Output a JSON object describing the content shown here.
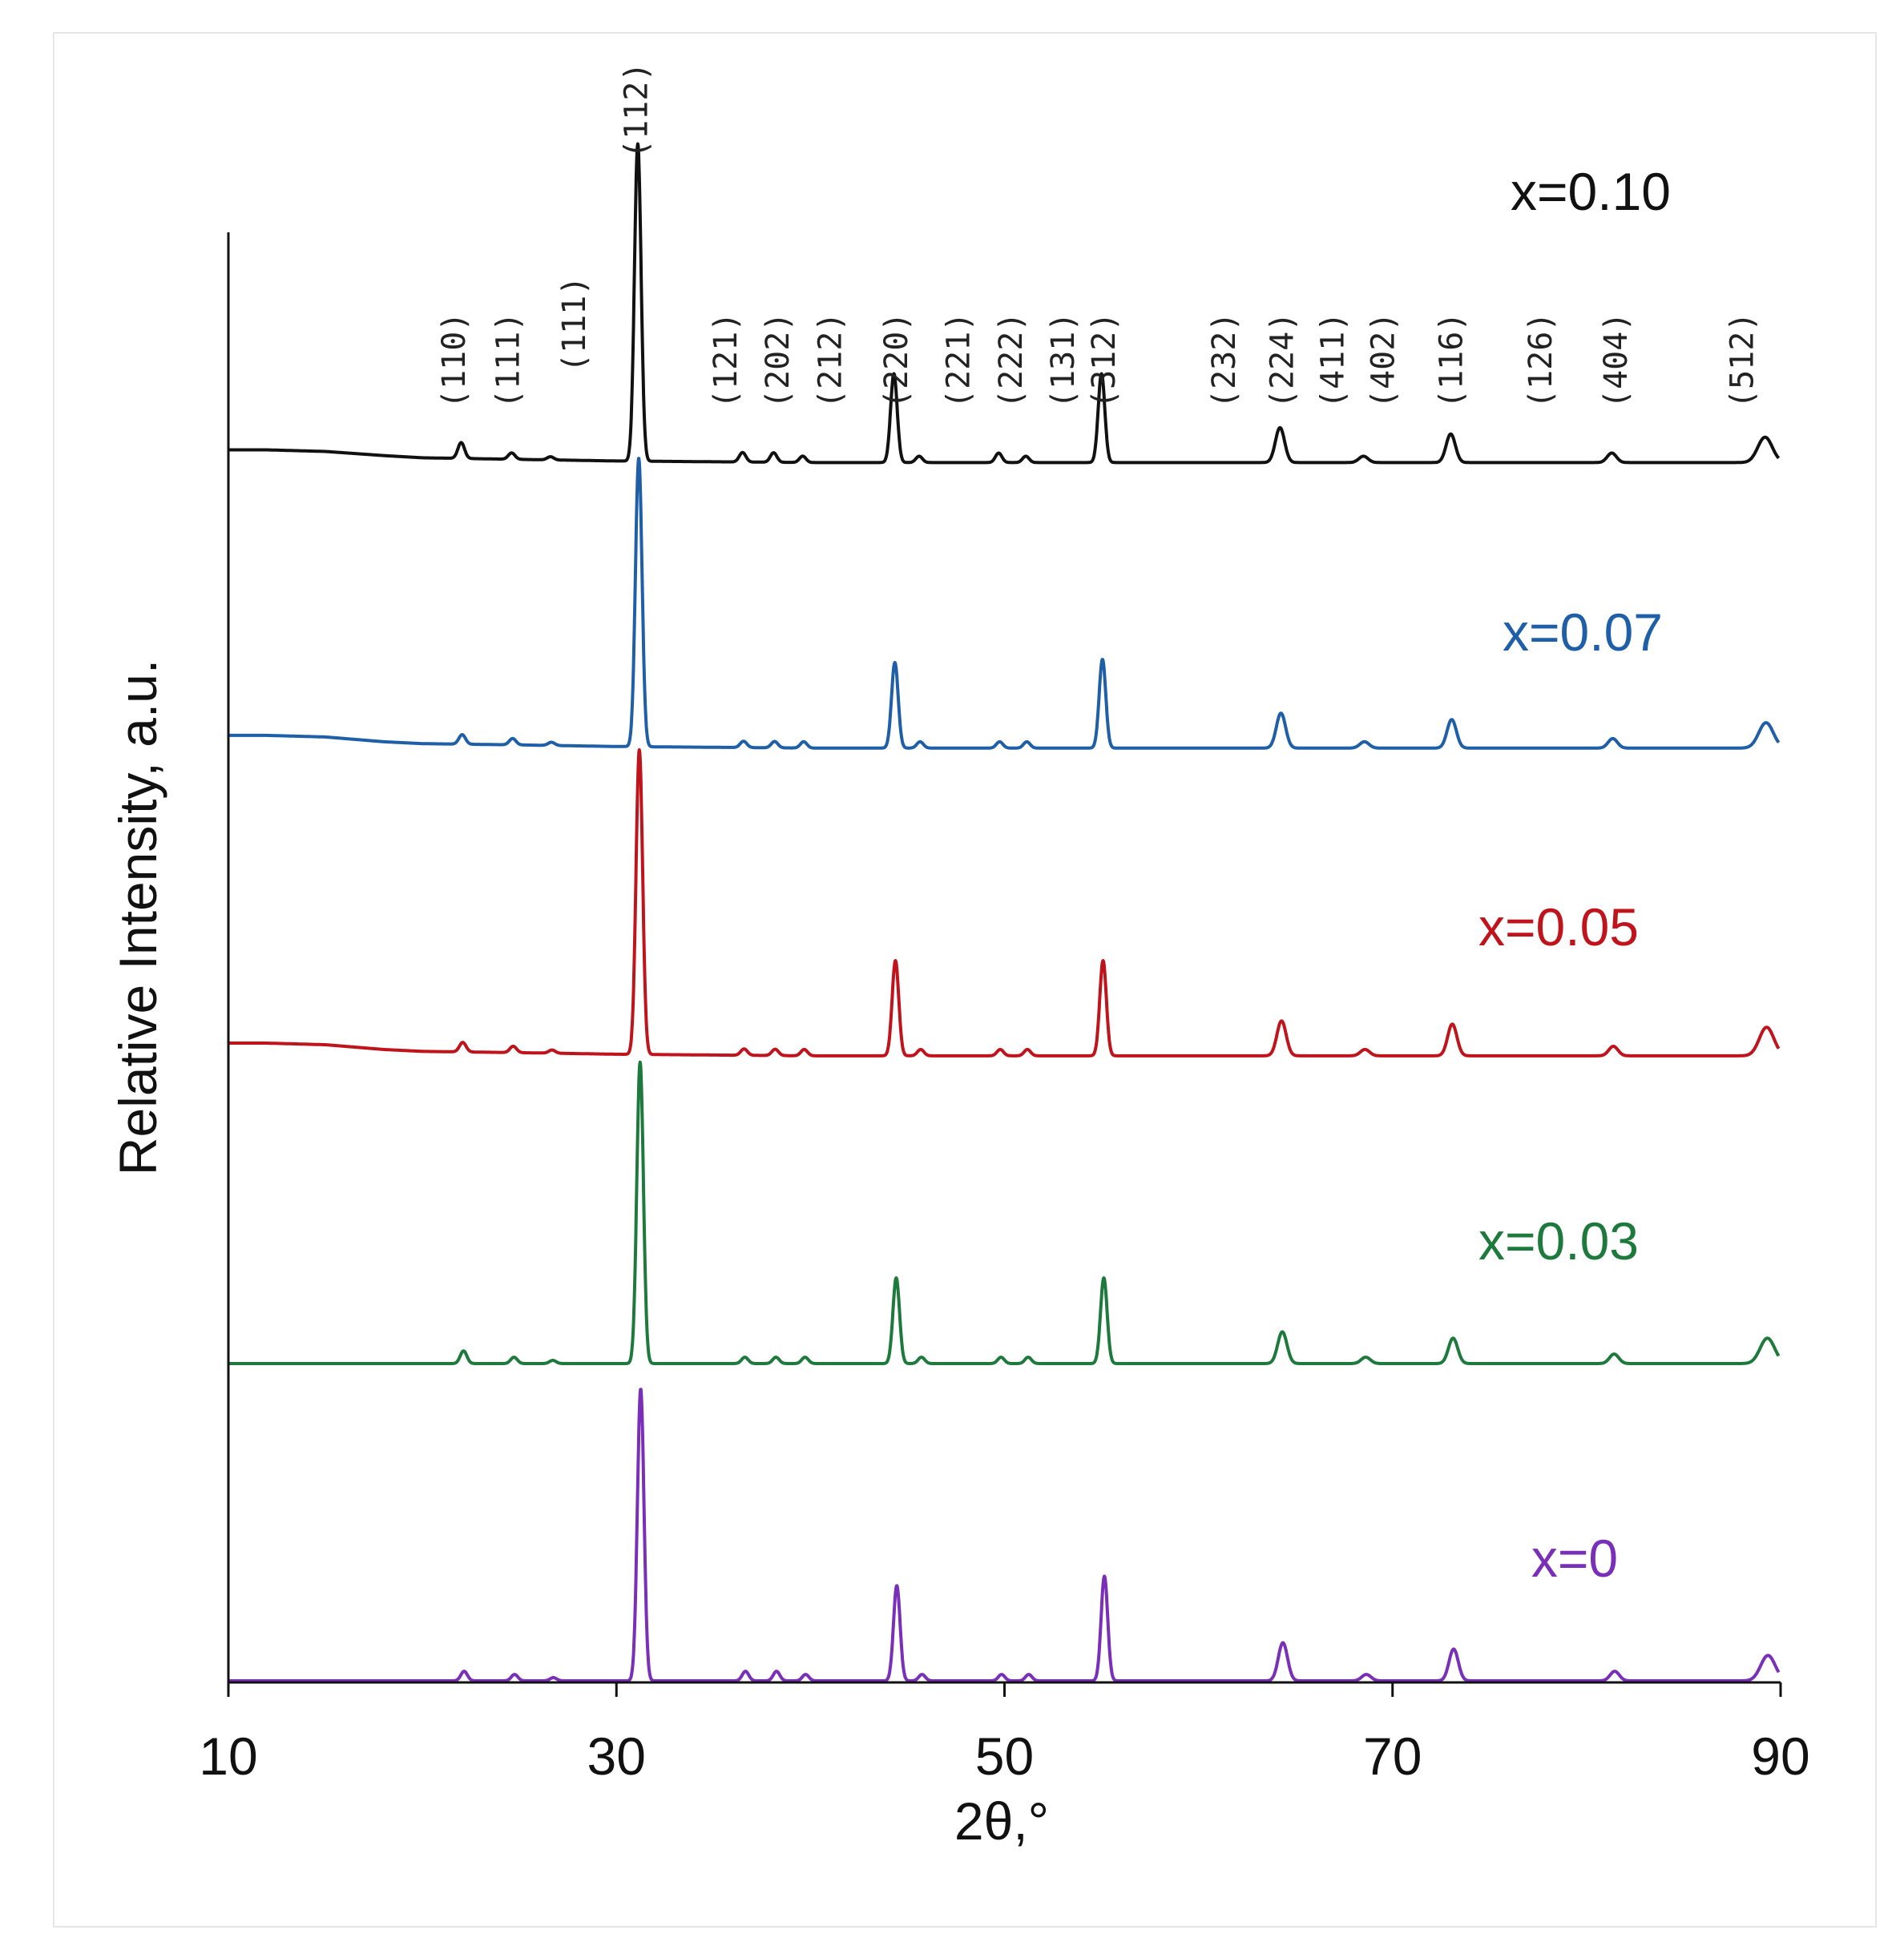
{
  "chart_data": {
    "type": "line",
    "title": "",
    "xlabel": "2θ,°",
    "ylabel": "Relative Intensity,  a.u.",
    "xlim": [
      10,
      90
    ],
    "xticks": [
      "10",
      "30",
      "50",
      "70",
      "90"
    ],
    "y_ticks_shown": false,
    "grid": false,
    "legend": "series labels printed at right above each trace",
    "peaks_2theta": [
      22.0,
      24.6,
      26.6,
      31.1,
      36.5,
      38.1,
      39.6,
      44.3,
      45.6,
      49.7,
      51.1,
      55.0,
      64.2,
      68.5,
      73.0,
      81.3,
      89.2
    ],
    "hkl_labels": [
      {
        "label": "(110)",
        "x": 21.6
      },
      {
        "label": "(111)",
        "x": 24.4
      },
      {
        "label": "(111)",
        "x": 27.8
      },
      {
        "label": "(112)",
        "x": 31.0
      },
      {
        "label": "(121)",
        "x": 35.6
      },
      {
        "label": "(202)",
        "x": 38.3
      },
      {
        "label": "(212)",
        "x": 41.0
      },
      {
        "label": "(220)",
        "x": 44.4
      },
      {
        "label": "(221)",
        "x": 47.6
      },
      {
        "label": "(222)",
        "x": 50.3
      },
      {
        "label": "(131)",
        "x": 53.0
      },
      {
        "label": "(312)",
        "x": 55.1
      },
      {
        "label": "(232)",
        "x": 61.3
      },
      {
        "label": "(224)",
        "x": 64.3
      },
      {
        "label": "(411)",
        "x": 66.9
      },
      {
        "label": "(402)",
        "x": 69.5
      },
      {
        "label": "(116)",
        "x": 73.0
      },
      {
        "label": "(126)",
        "x": 77.6
      },
      {
        "label": "(404)",
        "x": 81.5
      },
      {
        "label": "(512)",
        "x": 88.0
      }
    ],
    "series": [
      {
        "name": "x=0.10",
        "color": "#111111",
        "offset": 3.85,
        "peak_shift": 0.0,
        "peak_heights": [
          0.05,
          0.02,
          0.01,
          1.0,
          0.03,
          0.03,
          0.02,
          0.28,
          0.02,
          0.03,
          0.02,
          0.28,
          0.11,
          0.02,
          0.09,
          0.03,
          0.08
        ],
        "baseline": {
          "x": [
            10,
            12,
            15,
            18,
            20,
            25,
            30,
            40,
            60,
            90
          ],
          "y": [
            0.03,
            0.03,
            0.025,
            0.012,
            0.005,
            0.0,
            -0.005,
            -0.01,
            -0.01,
            -0.01
          ]
        }
      },
      {
        "name": "x=0.07",
        "color": "#1f5fa8",
        "offset": 2.95,
        "peak_shift": 0.05,
        "peak_heights": [
          0.03,
          0.02,
          0.01,
          0.91,
          0.02,
          0.02,
          0.02,
          0.27,
          0.02,
          0.02,
          0.02,
          0.28,
          0.11,
          0.02,
          0.09,
          0.03,
          0.08
        ],
        "baseline": {
          "x": [
            10,
            12,
            15,
            18,
            20,
            25,
            30,
            40,
            60,
            90
          ],
          "y": [
            0.03,
            0.03,
            0.025,
            0.01,
            0.004,
            0.0,
            -0.005,
            -0.01,
            -0.01,
            -0.01
          ]
        }
      },
      {
        "name": "x=0.05",
        "color": "#c0141c",
        "offset": 1.98,
        "peak_shift": 0.08,
        "peak_heights": [
          0.03,
          0.02,
          0.01,
          0.96,
          0.02,
          0.02,
          0.02,
          0.3,
          0.02,
          0.02,
          0.02,
          0.3,
          0.11,
          0.02,
          0.1,
          0.03,
          0.09
        ],
        "baseline": {
          "x": [
            10,
            12,
            15,
            18,
            20,
            25,
            30,
            40,
            60,
            90
          ],
          "y": [
            0.03,
            0.03,
            0.025,
            0.01,
            0.004,
            0.0,
            -0.005,
            -0.01,
            -0.01,
            -0.01
          ]
        }
      },
      {
        "name": "x=0.03",
        "color": "#1e7a3c",
        "offset": 1.0,
        "peak_shift": 0.12,
        "peak_heights": [
          0.04,
          0.02,
          0.01,
          0.95,
          0.02,
          0.02,
          0.02,
          0.27,
          0.02,
          0.02,
          0.02,
          0.27,
          0.1,
          0.02,
          0.08,
          0.03,
          0.08
        ],
        "baseline": {
          "x": [
            10,
            90
          ],
          "y": [
            0.0,
            0.0
          ]
        }
      },
      {
        "name": "x=0",
        "color": "#7a2fb8",
        "offset": 0.0,
        "peak_shift": 0.15,
        "peak_heights": [
          0.03,
          0.02,
          0.01,
          0.92,
          0.03,
          0.03,
          0.02,
          0.3,
          0.02,
          0.02,
          0.02,
          0.33,
          0.12,
          0.02,
          0.1,
          0.03,
          0.08
        ],
        "baseline": {
          "x": [
            10,
            90
          ],
          "y": [
            0.0,
            0.0
          ]
        }
      }
    ]
  }
}
